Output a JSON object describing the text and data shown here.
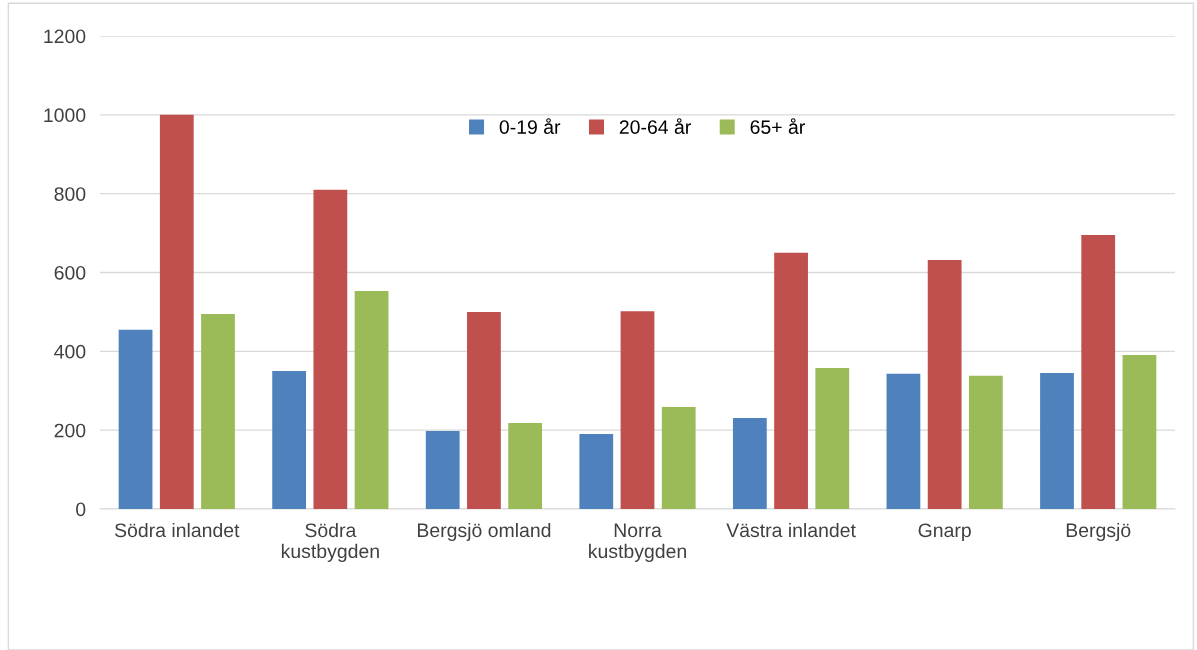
{
  "chart_data": {
    "type": "bar",
    "categories": [
      "Södra inlandet",
      "Södra\nkustbygden",
      "Bergsjö omland",
      "Norra\nkustbygden",
      "Västra inlandet",
      "Gnarp",
      "Bergsjö"
    ],
    "series": [
      {
        "name": "0-19 år",
        "color": "#4f81bd",
        "values": [
          455,
          350,
          198,
          190,
          231,
          343,
          345
        ]
      },
      {
        "name": "20-64 år",
        "color": "#c0504d",
        "values": [
          1000,
          810,
          500,
          502,
          650,
          632,
          695
        ]
      },
      {
        "name": "65+ år",
        "color": "#9bbb59",
        "values": [
          495,
          553,
          218,
          259,
          358,
          338,
          391
        ]
      }
    ],
    "ylim": [
      0,
      1200
    ],
    "yticks": [
      0,
      200,
      400,
      600,
      800,
      1000,
      1200
    ],
    "grid": "y",
    "legend": "top"
  }
}
